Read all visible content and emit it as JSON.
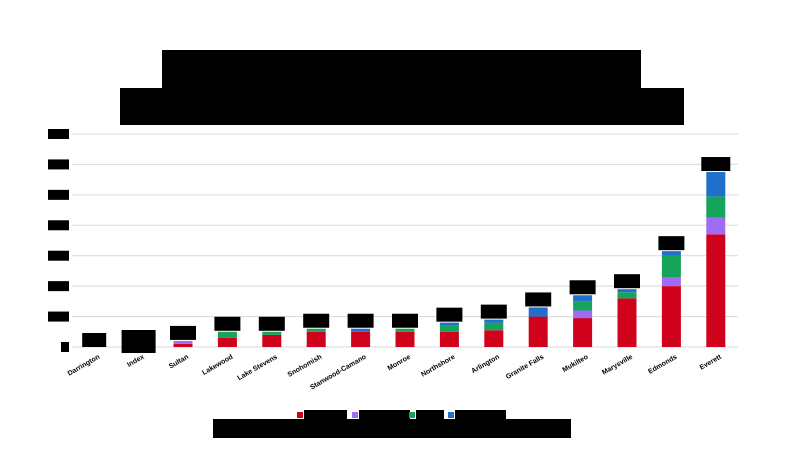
{
  "chart_data": {
    "type": "bar",
    "stacked": true,
    "title": "",
    "subtitle": "",
    "xlabel": "",
    "ylabel": "",
    "categories": [
      "Darrington",
      "Index",
      "Sultan",
      "Lakewood",
      "Lake Stevens",
      "Snohomish",
      "Stanwood-Camano",
      "Monroe",
      "Northshore",
      "Arlington",
      "Granite Falls",
      "Mukilteo",
      "Marysville",
      "Edmonds",
      "Everett"
    ],
    "series": [
      {
        "color": "#d0021b",
        "values": [
          0,
          0,
          1,
          3,
          4,
          5,
          5,
          5,
          5,
          5.5,
          10,
          9.5,
          16,
          20,
          37
        ]
      },
      {
        "color": "#a06cf5",
        "values": [
          0,
          0,
          1,
          0,
          0,
          0,
          0,
          0,
          0,
          0,
          0,
          2.5,
          0,
          3,
          5.5
        ]
      },
      {
        "color": "#16a35a",
        "values": [
          0,
          0,
          0,
          2,
          1,
          1,
          0,
          1,
          2,
          2.5,
          0,
          3,
          2,
          7,
          7
        ]
      },
      {
        "color": "#1f6fcb",
        "values": [
          0,
          0,
          0,
          0,
          0,
          0,
          1,
          0,
          1,
          1,
          3,
          2,
          1,
          1.5,
          8
        ]
      }
    ],
    "ylim": [
      0,
      70
    ],
    "ytick_step": 10,
    "grid": true,
    "legend_position": "bottom"
  }
}
